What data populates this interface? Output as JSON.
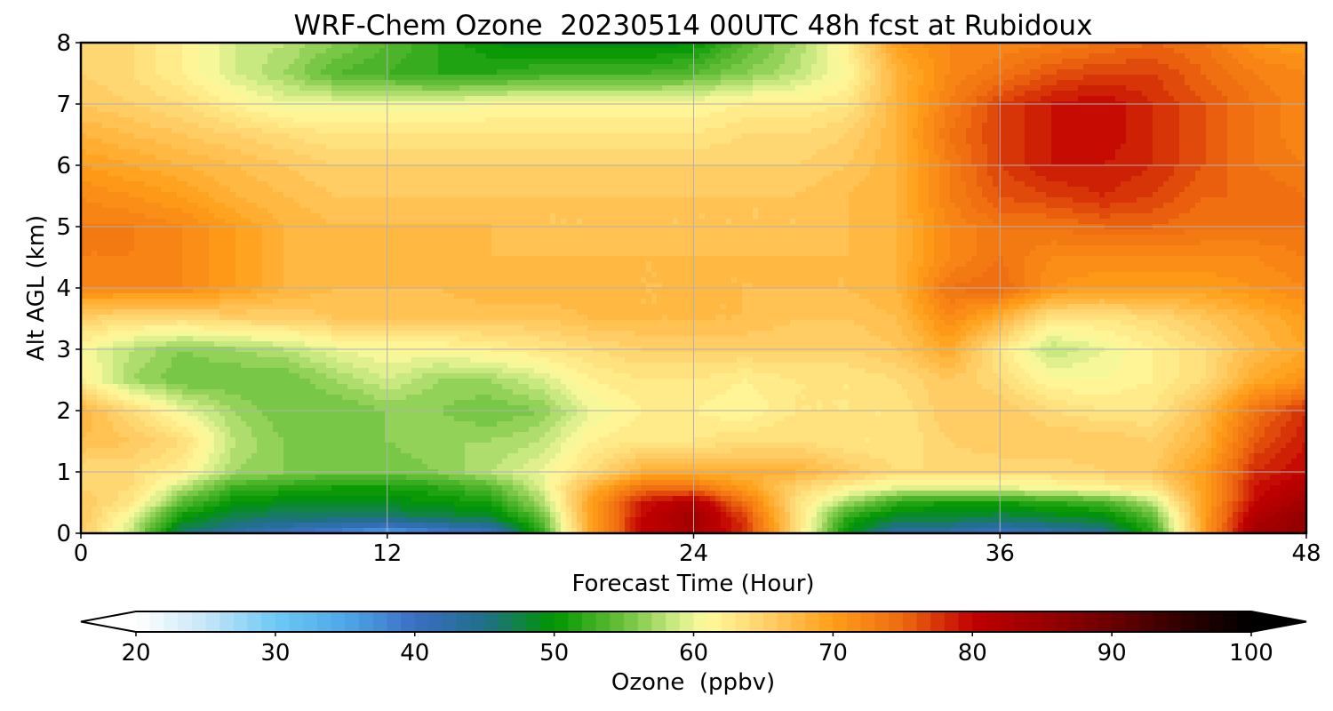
{
  "chart_data": {
    "type": "heatmap",
    "title": "WRF-Chem Ozone  20230514 00UTC 48h fcst at Rubidoux",
    "xlabel": "Forecast Time (Hour)",
    "ylabel": "Alt AGL (km)",
    "xlim": [
      0,
      48
    ],
    "ylim": [
      0,
      8
    ],
    "x_ticks": [
      0,
      12,
      24,
      36,
      48
    ],
    "y_ticks": [
      0,
      1,
      2,
      3,
      4,
      5,
      6,
      7,
      8
    ],
    "grid": true,
    "x_hours": [
      0,
      2,
      4,
      6,
      8,
      10,
      12,
      14,
      16,
      18,
      20,
      22,
      24,
      26,
      28,
      30,
      32,
      34,
      36,
      38,
      40,
      42,
      44,
      46,
      48
    ],
    "y_km": [
      0,
      0.25,
      0.5,
      0.75,
      1,
      1.5,
      2,
      2.5,
      3,
      3.5,
      4,
      4.5,
      5,
      5.5,
      6,
      6.5,
      7,
      7.5,
      8
    ],
    "z_ppbv": [
      [
        66,
        58,
        46,
        43,
        40,
        38,
        35,
        38,
        40,
        52,
        70,
        80,
        83,
        78,
        64,
        50,
        42,
        42,
        40,
        42,
        44,
        52,
        70,
        84,
        86
      ],
      [
        66,
        60,
        50,
        47,
        46,
        46,
        46,
        47,
        48,
        54,
        70,
        80,
        84,
        77,
        64,
        52,
        48,
        48,
        47,
        48,
        49,
        54,
        70,
        82,
        86
      ],
      [
        66,
        63,
        54,
        50,
        49,
        49,
        49,
        50,
        51,
        57,
        70,
        79,
        82,
        74,
        64,
        57,
        52,
        51,
        51,
        52,
        53,
        58,
        70,
        80,
        84
      ],
      [
        65,
        64,
        58,
        53,
        52,
        51,
        51,
        52,
        54,
        59,
        68,
        74,
        74,
        70,
        65,
        62,
        60,
        60,
        60,
        61,
        62,
        63,
        70,
        79,
        82
      ],
      [
        64,
        64,
        62,
        57,
        56,
        55,
        55,
        56,
        58,
        60,
        64,
        68,
        68,
        68,
        68,
        66,
        64,
        64,
        64,
        64,
        65,
        66,
        70,
        78,
        80
      ],
      [
        67,
        66,
        64,
        58,
        56,
        55,
        56,
        57,
        57,
        58,
        62,
        63,
        63,
        64,
        64,
        63,
        63,
        65,
        66,
        66,
        66,
        65,
        68,
        76,
        79
      ],
      [
        68,
        64,
        60,
        57,
        55,
        55,
        56,
        56,
        55,
        56,
        60,
        62,
        62,
        61,
        63,
        63,
        63,
        66,
        66,
        64,
        63,
        63,
        67,
        74,
        78
      ],
      [
        62,
        57,
        55,
        55,
        55,
        57,
        59,
        57,
        57,
        59,
        62,
        63,
        63,
        62,
        63,
        63,
        64,
        66,
        64,
        61,
        61,
        62,
        64,
        69,
        71
      ],
      [
        61,
        58,
        56,
        57,
        58,
        60,
        61,
        61,
        62,
        63,
        64,
        65,
        65,
        65,
        65,
        65,
        66,
        69,
        63,
        58,
        60,
        62,
        64,
        67,
        69
      ],
      [
        65,
        64,
        64,
        65,
        65,
        66,
        66,
        66,
        66,
        66,
        67,
        67,
        67,
        67,
        66,
        66,
        67,
        72,
        68,
        63,
        63,
        64,
        66,
        68,
        70
      ],
      [
        72,
        72,
        72,
        70,
        68,
        67,
        67,
        67,
        68,
        68,
        68,
        67,
        67,
        67,
        67,
        67,
        68,
        74,
        75,
        71,
        70,
        70,
        70,
        71,
        72
      ],
      [
        73,
        73,
        72,
        70,
        68,
        68,
        68,
        68,
        67,
        67,
        67,
        67,
        67,
        67,
        67,
        67,
        68,
        72,
        74,
        72,
        72,
        72,
        72,
        72,
        73
      ],
      [
        73,
        73,
        72,
        70,
        68,
        67,
        67,
        67,
        67,
        66,
        66,
        66,
        66,
        66,
        66,
        67,
        68,
        72,
        74,
        74,
        75,
        75,
        74,
        74,
        74
      ],
      [
        72,
        71,
        70,
        68,
        67,
        66,
        66,
        66,
        66,
        66,
        66,
        66,
        66,
        66,
        66,
        67,
        68,
        73,
        76,
        77,
        78,
        77,
        75,
        75,
        74
      ],
      [
        70,
        69,
        68,
        67,
        66,
        65,
        65,
        65,
        65,
        65,
        65,
        65,
        65,
        65,
        65,
        66,
        68,
        73,
        77,
        79,
        79,
        78,
        76,
        74,
        73
      ],
      [
        68,
        67,
        66,
        65,
        64,
        63,
        63,
        63,
        63,
        63,
        63,
        63,
        63,
        64,
        64,
        65,
        68,
        74,
        77,
        79,
        80,
        78,
        76,
        74,
        72
      ],
      [
        66,
        65,
        64,
        62,
        60,
        60,
        60,
        60,
        61,
        61,
        61,
        61,
        61,
        62,
        62,
        63,
        68,
        73,
        77,
        79,
        80,
        78,
        76,
        74,
        72
      ],
      [
        65,
        64,
        62,
        59,
        57,
        54,
        53,
        52,
        52,
        53,
        53,
        53,
        54,
        56,
        58,
        61,
        68,
        72,
        74,
        76,
        77,
        77,
        75,
        73,
        72
      ],
      [
        65,
        64,
        62,
        59,
        58,
        56,
        54,
        52,
        50,
        49,
        49,
        49,
        50,
        54,
        57,
        62,
        70,
        72,
        72,
        73,
        74,
        75,
        74,
        71,
        70
      ]
    ]
  },
  "colorbar": {
    "label": "Ozone  (ppbv)",
    "min": 20,
    "max": 100,
    "step": 1,
    "ticks": [
      20,
      30,
      40,
      50,
      60,
      70,
      80,
      90,
      100
    ],
    "extend": "both",
    "color_stops": [
      [
        20,
        "#ffffff"
      ],
      [
        25,
        "#c6e6f8"
      ],
      [
        30,
        "#6dc9f5"
      ],
      [
        35,
        "#4ea8e6"
      ],
      [
        40,
        "#3a6fc3"
      ],
      [
        45,
        "#1f6f8a"
      ],
      [
        50,
        "#009600"
      ],
      [
        55,
        "#6cc13c"
      ],
      [
        59,
        "#d5ed8a"
      ],
      [
        61,
        "#fffa9c"
      ],
      [
        65,
        "#ffd26c"
      ],
      [
        70,
        "#ff9e18"
      ],
      [
        75,
        "#ee6a10"
      ],
      [
        80,
        "#c00000"
      ],
      [
        85,
        "#9a0000"
      ],
      [
        90,
        "#6a0000"
      ],
      [
        95,
        "#300000"
      ],
      [
        100,
        "#000000"
      ]
    ]
  }
}
